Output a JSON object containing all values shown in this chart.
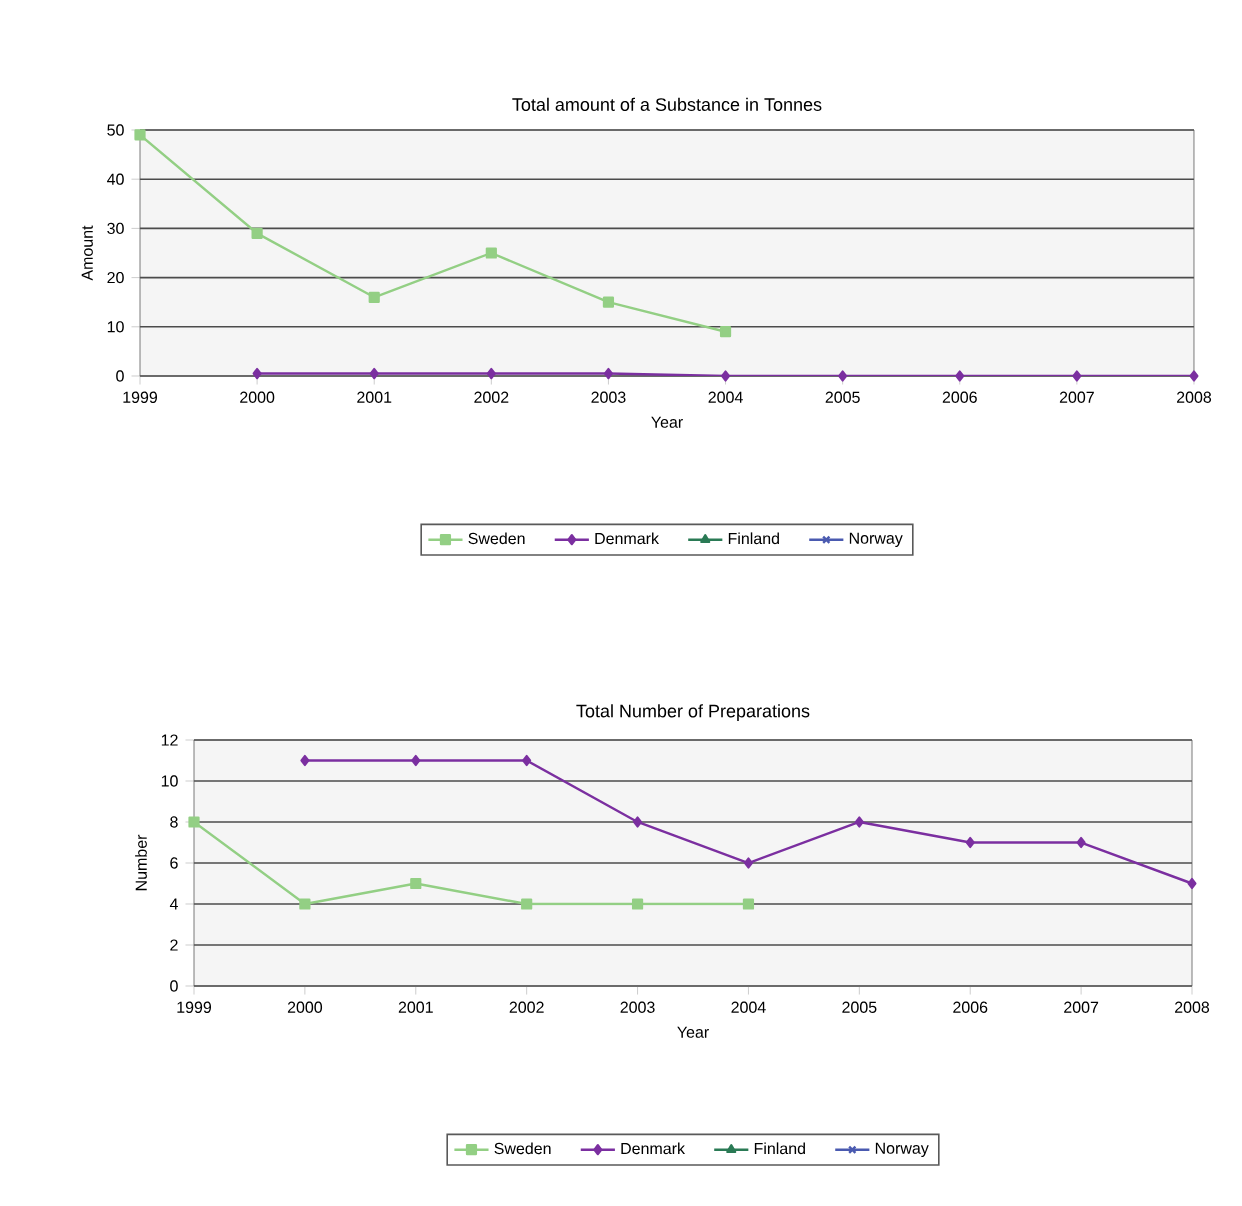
{
  "chart_data": [
    {
      "type": "line",
      "title": "Total amount of a Substance in Tonnes",
      "xlabel": "Year",
      "ylabel": "Amount",
      "x": [
        1999,
        2000,
        2001,
        2002,
        2003,
        2004,
        2005,
        2006,
        2007,
        2008
      ],
      "xlim": [
        1999,
        2008
      ],
      "xticks": [
        1999,
        2000,
        2001,
        2002,
        2003,
        2004,
        2005,
        2006,
        2007,
        2008
      ],
      "ylim": [
        0,
        50
      ],
      "yticks": [
        0,
        10,
        20,
        30,
        40,
        50
      ],
      "grid": "y",
      "legend": "bottom",
      "series": [
        {
          "name": "Sweden",
          "color": "#93cf84",
          "marker": "square",
          "values": [
            49,
            29,
            16,
            25,
            15,
            9,
            null,
            null,
            null,
            null
          ]
        },
        {
          "name": "Denmark",
          "color": "#7b2fa0",
          "marker": "diamond",
          "values": [
            null,
            0.5,
            0.5,
            0.5,
            0.5,
            0,
            0,
            0,
            0,
            0
          ]
        },
        {
          "name": "Finland",
          "color": "#2a7a55",
          "marker": "triangle",
          "values": [
            null,
            null,
            null,
            null,
            null,
            null,
            null,
            null,
            null,
            null
          ]
        },
        {
          "name": "Norway",
          "color": "#4a5ab0",
          "marker": "cross",
          "values": [
            null,
            null,
            null,
            null,
            null,
            null,
            null,
            null,
            null,
            null
          ]
        }
      ]
    },
    {
      "type": "line",
      "title": "Total Number of Preparations",
      "xlabel": "Year",
      "ylabel": "Number",
      "x": [
        1999,
        2000,
        2001,
        2002,
        2003,
        2004,
        2005,
        2006,
        2007,
        2008
      ],
      "xlim": [
        1999,
        2008
      ],
      "xticks": [
        1999,
        2000,
        2001,
        2002,
        2003,
        2004,
        2005,
        2006,
        2007,
        2008
      ],
      "ylim": [
        0,
        12
      ],
      "yticks": [
        0,
        2,
        4,
        6,
        8,
        10,
        12
      ],
      "grid": "y",
      "legend": "bottom",
      "series": [
        {
          "name": "Sweden",
          "color": "#93cf84",
          "marker": "square",
          "values": [
            8,
            4,
            5,
            4,
            4,
            4,
            null,
            null,
            null,
            null
          ]
        },
        {
          "name": "Denmark",
          "color": "#7b2fa0",
          "marker": "diamond",
          "values": [
            null,
            11,
            11,
            11,
            8,
            6,
            8,
            7,
            7,
            5
          ]
        },
        {
          "name": "Finland",
          "color": "#2a7a55",
          "marker": "triangle",
          "values": [
            null,
            null,
            null,
            null,
            null,
            null,
            null,
            null,
            null,
            null
          ]
        },
        {
          "name": "Norway",
          "color": "#4a5ab0",
          "marker": "cross",
          "values": [
            null,
            null,
            null,
            null,
            null,
            null,
            null,
            null,
            null,
            null
          ]
        }
      ]
    }
  ]
}
